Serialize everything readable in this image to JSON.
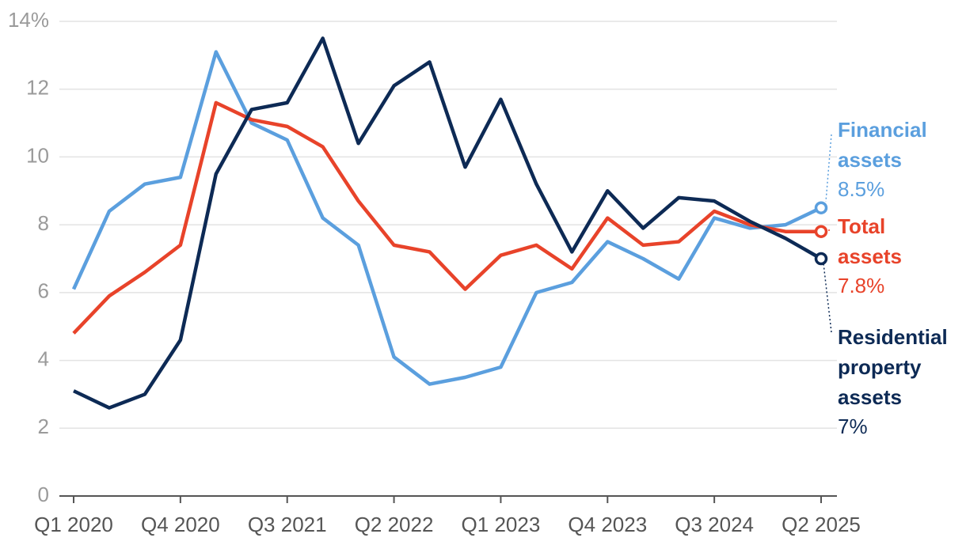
{
  "chart_data": {
    "type": "line",
    "categories": [
      "Q1 2020",
      null,
      null,
      "Q4 2020",
      null,
      null,
      "Q3 2021",
      null,
      null,
      "Q2 2022",
      null,
      null,
      "Q1 2023",
      null,
      null,
      "Q4 2023",
      null,
      null,
      "Q3 2024",
      null,
      null,
      "Q2 2025"
    ],
    "ylim": [
      0,
      14
    ],
    "yticks": [
      0,
      2,
      4,
      6,
      8,
      10,
      12,
      {
        "value": 14,
        "label": "14%"
      }
    ],
    "grid": true,
    "series": [
      {
        "name": "Financial assets",
        "color": "#5b9fde",
        "values": [
          6.1,
          8.4,
          9.2,
          9.4,
          13.1,
          11.0,
          10.5,
          8.2,
          7.4,
          4.1,
          3.3,
          3.5,
          3.8,
          6.0,
          6.3,
          7.5,
          7.0,
          6.4,
          8.2,
          7.9,
          8.0,
          8.5
        ],
        "value_labels": [
          null,
          null,
          null,
          null,
          null,
          null,
          null,
          null,
          null,
          null,
          null,
          null,
          null,
          null,
          null,
          null,
          null,
          null,
          null,
          null,
          null,
          "8.5%"
        ]
      },
      {
        "name": "Total assets",
        "color": "#e8432a",
        "values": [
          4.8,
          5.9,
          6.6,
          7.4,
          11.6,
          11.1,
          10.9,
          10.3,
          8.7,
          7.4,
          7.2,
          6.1,
          7.1,
          7.4,
          6.7,
          8.2,
          7.4,
          7.5,
          8.4,
          8.0,
          7.8,
          7.8
        ],
        "value_labels": [
          null,
          null,
          null,
          null,
          null,
          null,
          null,
          null,
          null,
          null,
          null,
          null,
          null,
          null,
          null,
          null,
          null,
          null,
          null,
          null,
          null,
          "7.8%"
        ]
      },
      {
        "name": "Residential property assets",
        "color": "#0d2a55",
        "values": [
          3.1,
          2.6,
          3.0,
          4.6,
          9.5,
          11.4,
          11.6,
          13.5,
          10.4,
          12.1,
          12.8,
          9.7,
          11.7,
          9.2,
          7.2,
          9.0,
          7.9,
          8.8,
          8.7,
          8.1,
          7.6,
          7.0
        ],
        "value_labels": [
          null,
          null,
          null,
          null,
          null,
          null,
          null,
          null,
          null,
          null,
          null,
          null,
          null,
          null,
          null,
          null,
          null,
          null,
          null,
          null,
          null,
          "7%"
        ]
      }
    ]
  }
}
